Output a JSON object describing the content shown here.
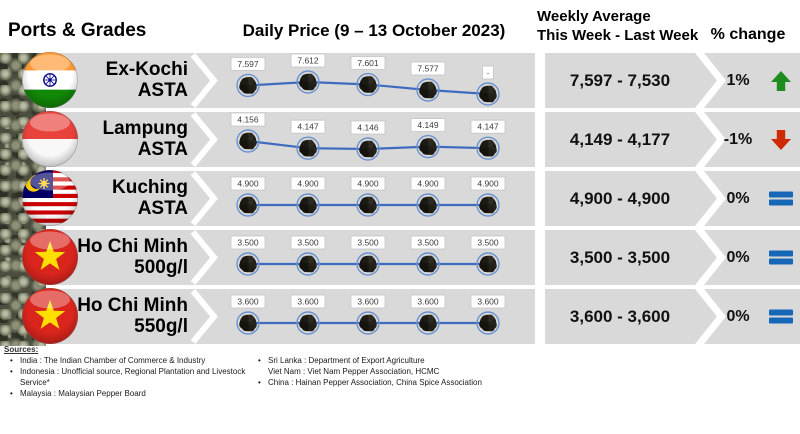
{
  "header": {
    "ports_grades": "Ports & Grades",
    "daily_price": "Daily Price (9 – 13 October 2023)",
    "weekly_line1": "Weekly Average",
    "weekly_line2": "This Week - Last Week",
    "pct_change": "% change"
  },
  "colors": {
    "band_gray": "#d9d9d9",
    "line_blue": "#3f6bbf",
    "ring_blue": "#6b93cf",
    "up_green": "#1e8c1e",
    "down_red": "#cf2900",
    "equal_blue": "#1767b9"
  },
  "rows": [
    {
      "flag": "india",
      "port_line1": "Ex-Kochi",
      "port_line2": "ASTA",
      "weekly": "7,597 - 7,530",
      "pct": "1%",
      "trend": "up"
    },
    {
      "flag": "indonesia",
      "port_line1": "Lampung",
      "port_line2": "ASTA",
      "weekly": "4,149 - 4,177",
      "pct": "-1%",
      "trend": "down"
    },
    {
      "flag": "malaysia",
      "port_line1": "Kuching",
      "port_line2": "ASTA",
      "weekly": "4,900 - 4,900",
      "pct": "0%",
      "trend": "equal"
    },
    {
      "flag": "vietnam",
      "port_line1": "Ho Chi Minh",
      "port_line2": "500g/l",
      "weekly": "3,500 - 3,500",
      "pct": "0%",
      "trend": "equal"
    },
    {
      "flag": "vietnam",
      "port_line1": "Ho Chi Minh",
      "port_line2": "550g/l",
      "weekly": "3,600 - 3,600",
      "pct": "0%",
      "trend": "equal"
    }
  ],
  "chart_data": [
    {
      "type": "line",
      "name": "Ex-Kochi ASTA",
      "period": "9 – 13 October 2023",
      "point_labels": [
        "7.597",
        "7.612",
        "7.601",
        "7.577",
        "-"
      ],
      "values": [
        7597,
        7612,
        7601,
        7577,
        null
      ],
      "weekly_avg": {
        "this_week": 7597,
        "last_week": 7530
      },
      "pct_change": 1,
      "trend": "up"
    },
    {
      "type": "line",
      "name": "Lampung ASTA",
      "period": "9 – 13 October 2023",
      "point_labels": [
        "4.156",
        "4.147",
        "4.146",
        "4.149",
        "4.147"
      ],
      "values": [
        4156,
        4147,
        4146,
        4149,
        4147
      ],
      "weekly_avg": {
        "this_week": 4149,
        "last_week": 4177
      },
      "pct_change": -1,
      "trend": "down"
    },
    {
      "type": "line",
      "name": "Kuching ASTA",
      "period": "9 – 13 October 2023",
      "point_labels": [
        "4.900",
        "4.900",
        "4.900",
        "4.900",
        "4.900"
      ],
      "values": [
        4900,
        4900,
        4900,
        4900,
        4900
      ],
      "weekly_avg": {
        "this_week": 4900,
        "last_week": 4900
      },
      "pct_change": 0,
      "trend": "equal"
    },
    {
      "type": "line",
      "name": "Ho Chi Minh 500g/l",
      "period": "9 – 13 October 2023",
      "point_labels": [
        "3.500",
        "3.500",
        "3.500",
        "3.500",
        "3.500"
      ],
      "values": [
        3500,
        3500,
        3500,
        3500,
        3500
      ],
      "weekly_avg": {
        "this_week": 3500,
        "last_week": 3500
      },
      "pct_change": 0,
      "trend": "equal"
    },
    {
      "type": "line",
      "name": "Ho Chi Minh 550g/l",
      "period": "9 – 13 October 2023",
      "point_labels": [
        "3.600",
        "3.600",
        "3.600",
        "3.600",
        "3.600"
      ],
      "values": [
        3600,
        3600,
        3600,
        3600,
        3600
      ],
      "weekly_avg": {
        "this_week": 3600,
        "last_week": 3600
      },
      "pct_change": 0,
      "trend": "equal"
    }
  ],
  "sources": {
    "title": "Sources:",
    "left": [
      "India : The Indian Chamber of Commerce & Industry",
      "Indonesia : Unofficial source, Regional Plantation and Livestock Service*",
      "Malaysia : Malaysian Pepper Board"
    ],
    "right": [
      "Sri Lanka : Department of Export Agriculture",
      "Viet Nam : Viet Nam Pepper Association, HCMC",
      "China : Hainan Pepper Association, China Spice Association"
    ]
  }
}
